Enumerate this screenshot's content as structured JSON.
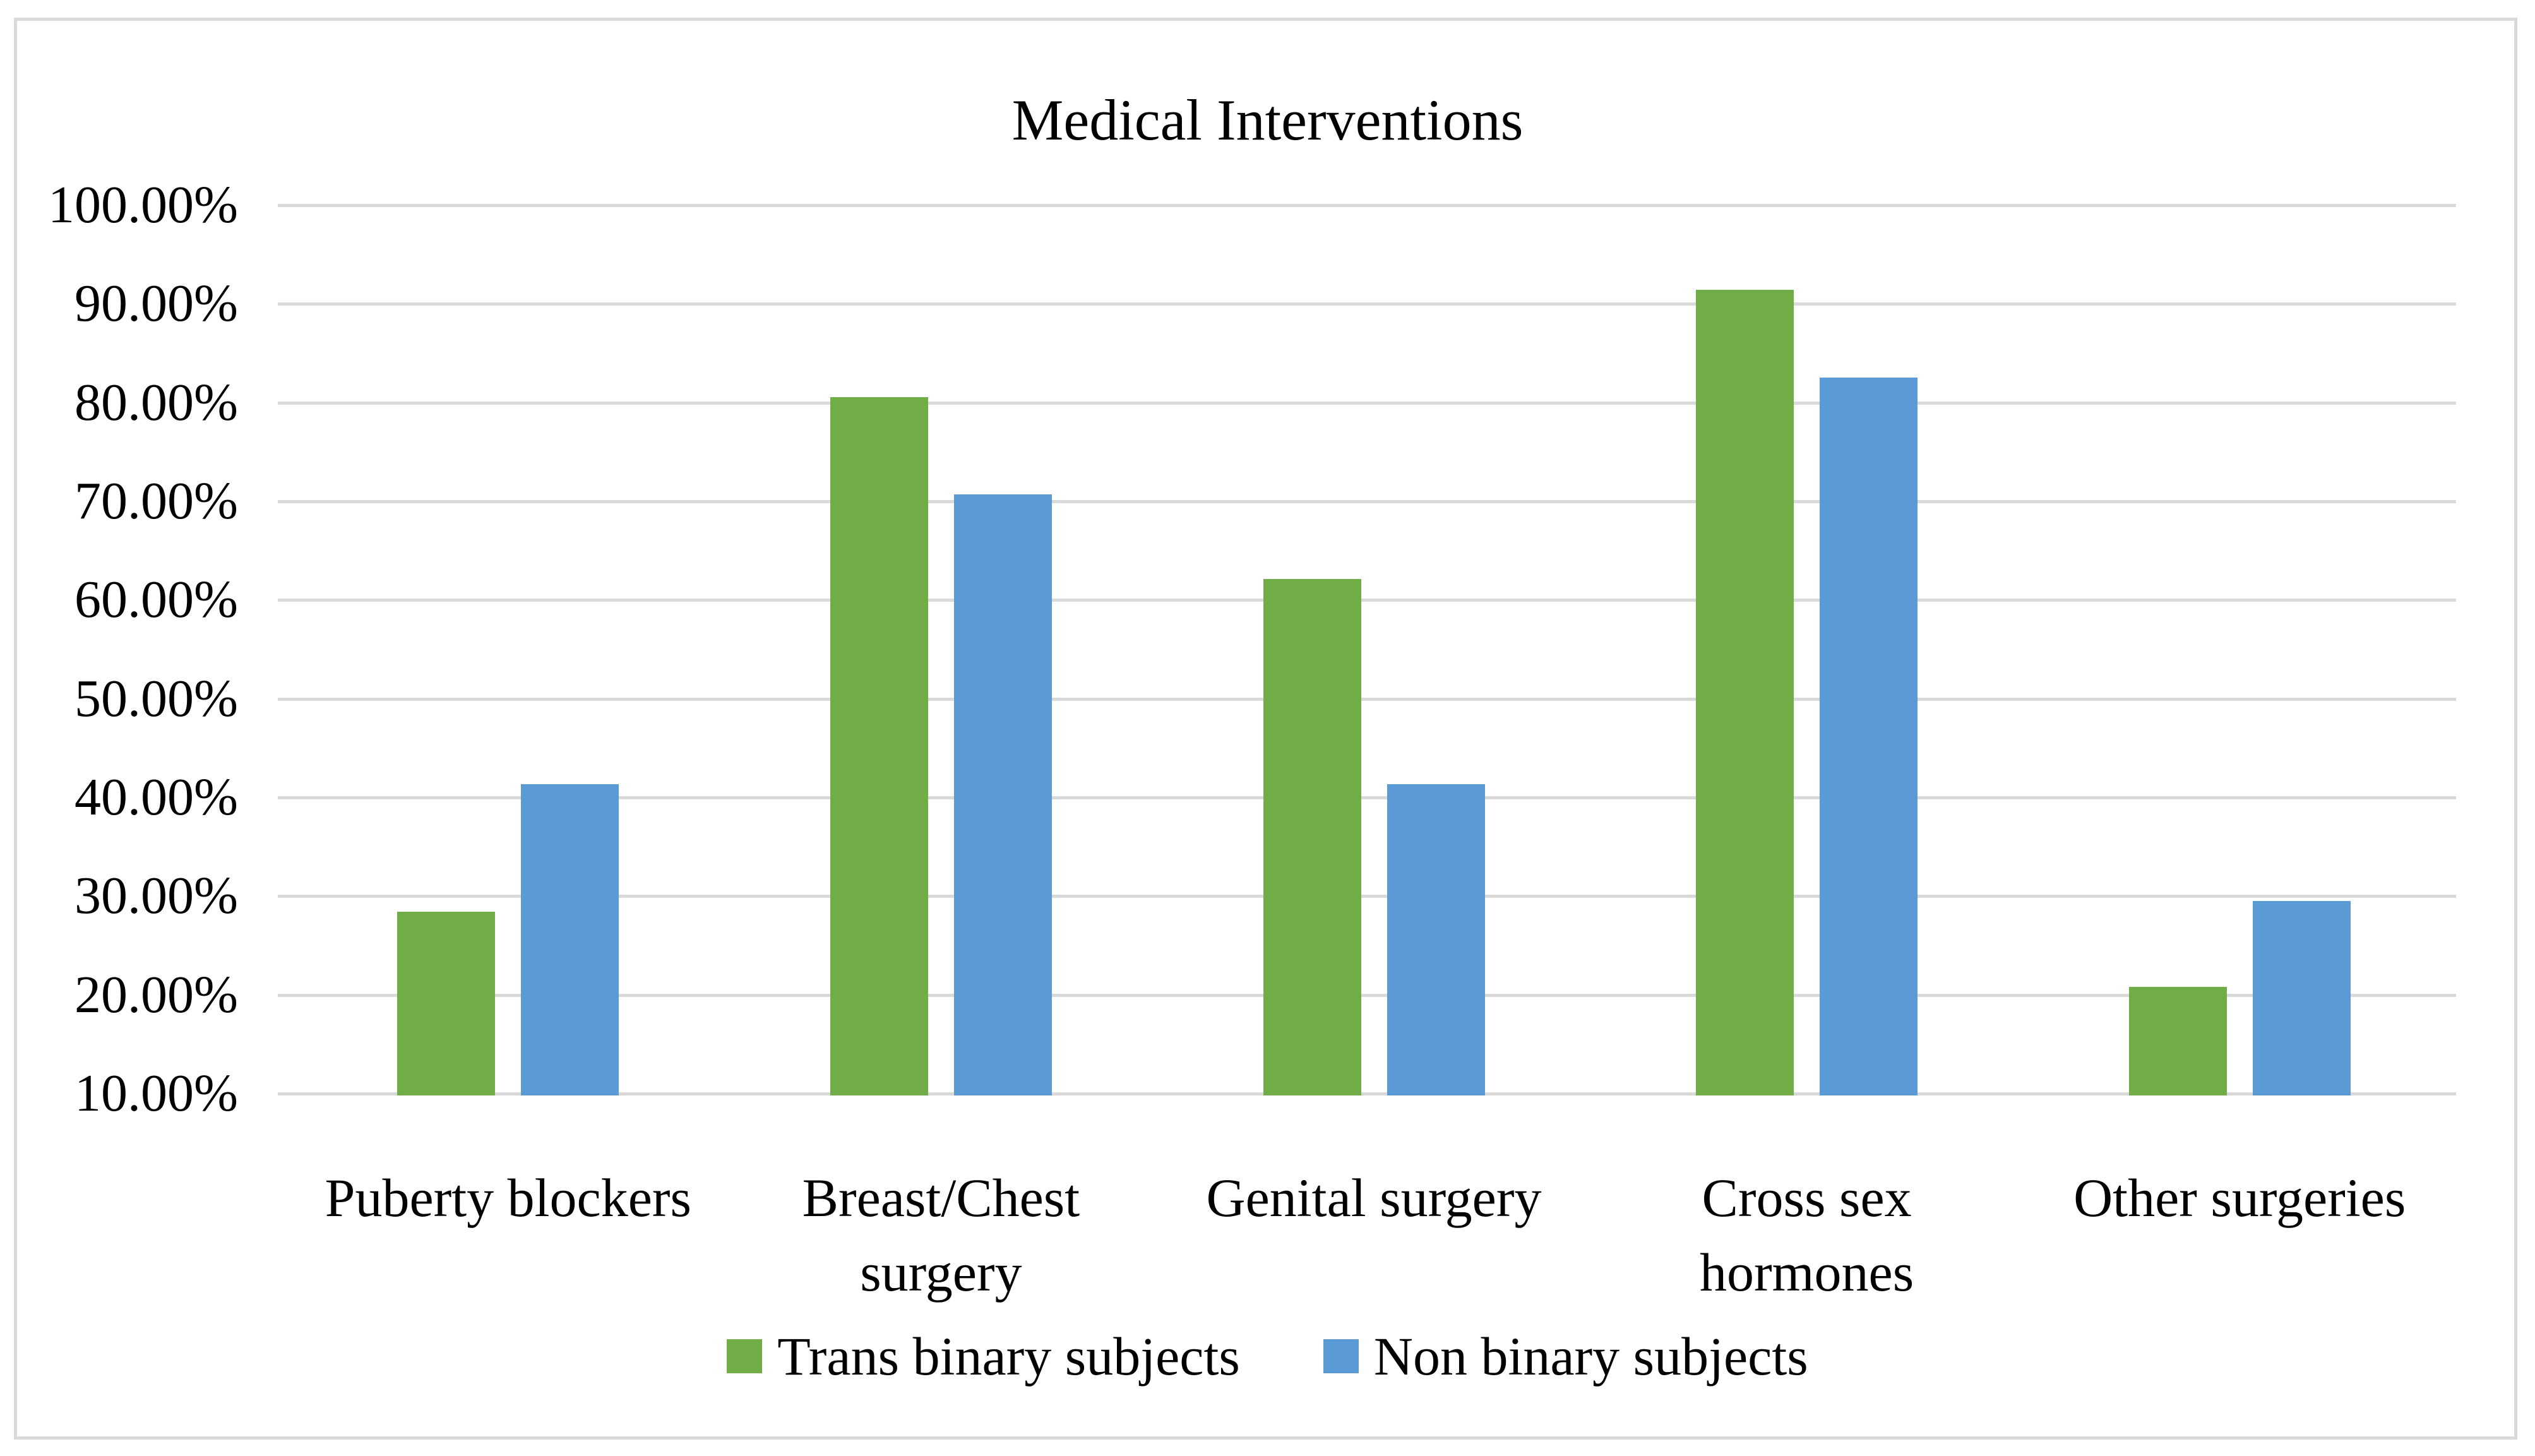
{
  "figure": {
    "background_color": "#FFFFFF",
    "border_color": "#D9D9D9",
    "text_color": "#000000"
  },
  "chart_data": {
    "type": "bar",
    "title": "Medical Interventions",
    "categories": [
      "Puberty blockers",
      "Breast/Chest surgery",
      "Genital surgery",
      "Cross sex hormones",
      "Other surgeries"
    ],
    "category_label_lines": [
      [
        "Puberty blockers"
      ],
      [
        "Breast/Chest",
        "surgery"
      ],
      [
        "Genital surgery"
      ],
      [
        "Cross sex",
        "hormones"
      ],
      [
        "Other surgeries"
      ]
    ],
    "series": [
      {
        "name": "Trans binary subjects",
        "color": "#70AD47",
        "values": [
          28.3,
          80.4,
          62.0,
          91.3,
          20.7
        ]
      },
      {
        "name": "Non binary subjects",
        "color": "#5B9BD5",
        "values": [
          41.2,
          70.6,
          41.2,
          82.4,
          29.4
        ]
      }
    ],
    "value_unit": "%",
    "ylim": [
      10,
      100
    ],
    "y_ticks": [
      "100.00%",
      "90.00%",
      "80.00%",
      "70.00%",
      "60.00%",
      "50.00%",
      "40.00%",
      "30.00%",
      "20.00%",
      "10.00%"
    ],
    "grid": true,
    "gridline_color": "#D9D9D9",
    "legend_position": "bottom"
  }
}
